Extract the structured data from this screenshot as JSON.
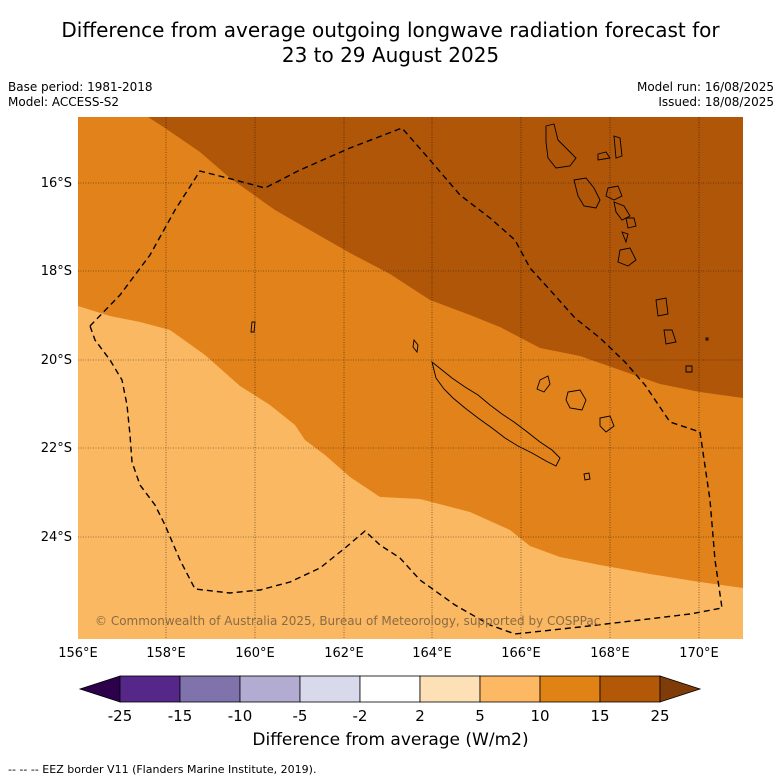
{
  "title": {
    "line1": "Difference from average outgoing longwave radiation forecast for",
    "line2": "23 to 29 August 2025"
  },
  "meta": {
    "base_period": "Base period: 1981-2018",
    "model": "Model: ACCESS-S2",
    "model_run": "Model run: 16/08/2025",
    "issued": "Issued: 18/08/2025"
  },
  "map": {
    "lat_labels": [
      "16°S",
      "18°S",
      "20°S",
      "22°S",
      "24°S"
    ],
    "lon_labels": [
      "156°E",
      "158°E",
      "160°E",
      "162°E",
      "164°E",
      "166°E",
      "168°E",
      "170°E"
    ],
    "copyright": "© Commonwealth of Australia 2025, Bureau of Meteorology, supported by COSPPac",
    "colors": {
      "band_2_5": "#fcdbb0",
      "band_5_10": "#fbb862",
      "band_10_15": "#e1821b",
      "band_15_25": "#b05609"
    }
  },
  "colorbar": {
    "ticks": [
      "-25",
      "-15",
      "-10",
      "-5",
      "-2",
      "2",
      "5",
      "10",
      "15",
      "25"
    ],
    "colors": [
      "#2d004b",
      "#542788",
      "#8073ac",
      "#b2abd2",
      "#d8daeb",
      "#ffffff",
      "#fee0b6",
      "#fdb863",
      "#e08214",
      "#b35806",
      "#7f3b08"
    ],
    "title": "Difference from average (W/m2)"
  },
  "footer": {
    "legend": "-- -- -- EEZ border V11 (Flanders Marine Institute, 2019)."
  }
}
